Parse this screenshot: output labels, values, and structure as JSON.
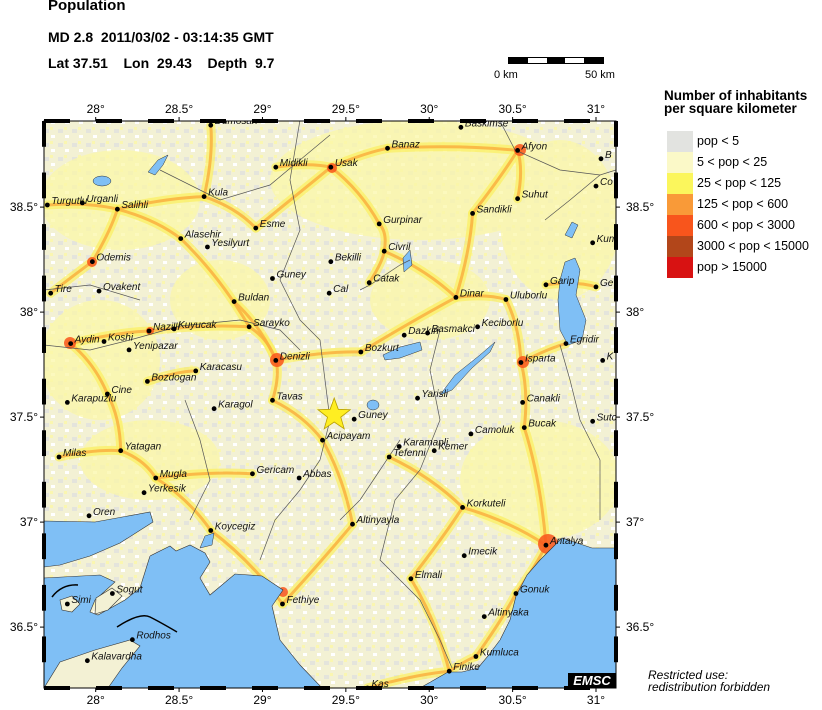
{
  "header": {
    "title": "Population",
    "event_line": "MD 2.8  2011/03/02 - 03:14:35 GMT",
    "location_line": "Lat 37.51    Lon  29.43    Depth  9.7"
  },
  "event": {
    "magnitude_type": "MD",
    "magnitude": 2.8,
    "lat": 37.51,
    "lon": 29.43,
    "depth": 9.7,
    "marker": "star-icon",
    "marker_color": "#ffee22"
  },
  "scale_bar": {
    "start_label": "0 km",
    "end_label": "50 km"
  },
  "map": {
    "lon_range": [
      27.69,
      31.12
    ],
    "lat_range": [
      36.21,
      38.91
    ],
    "lon_ticks": [
      28,
      28.5,
      29,
      29.5,
      30,
      30.5,
      31
    ],
    "lat_ticks": [
      36.5,
      37,
      37.5,
      38,
      38.5
    ],
    "lon_tick_labels": [
      "28°",
      "28.5°",
      "29°",
      "29.5°",
      "30°",
      "30.5°",
      "31°"
    ],
    "lat_tick_labels": [
      "36.5°",
      "37°",
      "37.5°",
      "38°",
      "38.5°"
    ],
    "sea_color": "#7fbff5",
    "cities": [
      {
        "name": "Dumosan",
        "lat": 38.89,
        "lon": 28.69
      },
      {
        "name": "Midikli",
        "lat": 38.69,
        "lon": 29.08
      },
      {
        "name": "Kula",
        "lat": 38.55,
        "lon": 28.65
      },
      {
        "name": "Turgutlu",
        "lat": 38.51,
        "lon": 27.71
      },
      {
        "name": "Urganli",
        "lat": 38.52,
        "lon": 27.92
      },
      {
        "name": "Salihli",
        "lat": 38.49,
        "lon": 28.13
      },
      {
        "name": "Esme",
        "lat": 38.4,
        "lon": 28.96
      },
      {
        "name": "Alasehir",
        "lat": 38.35,
        "lon": 28.51
      },
      {
        "name": "Yesilyurt",
        "lat": 38.31,
        "lon": 28.67
      },
      {
        "name": "Odemis",
        "lat": 38.24,
        "lon": 27.98
      },
      {
        "name": "Guney",
        "lat": 38.16,
        "lon": 29.06
      },
      {
        "name": "Tire",
        "lat": 38.09,
        "lon": 27.73
      },
      {
        "name": "Ovakent",
        "lat": 38.1,
        "lon": 28.02
      },
      {
        "name": "Buldan",
        "lat": 38.05,
        "lon": 28.83
      },
      {
        "name": "Sarayko",
        "lat": 37.93,
        "lon": 28.92
      },
      {
        "name": "Nazilli",
        "lat": 37.91,
        "lon": 28.32
      },
      {
        "name": "Kuyucak",
        "lat": 37.92,
        "lon": 28.47
      },
      {
        "name": "Koshi",
        "lat": 37.86,
        "lon": 28.05
      },
      {
        "name": "Aydin",
        "lat": 37.85,
        "lon": 27.85
      },
      {
        "name": "Yenipazar",
        "lat": 37.82,
        "lon": 28.2
      },
      {
        "name": "Denizli",
        "lat": 37.77,
        "lon": 29.08
      },
      {
        "name": "Karacasu",
        "lat": 37.72,
        "lon": 28.6
      },
      {
        "name": "Bozdogan",
        "lat": 37.67,
        "lon": 28.31
      },
      {
        "name": "Cine",
        "lat": 37.61,
        "lon": 28.07
      },
      {
        "name": "Karapuzlu",
        "lat": 37.57,
        "lon": 27.83
      },
      {
        "name": "Tavas",
        "lat": 37.58,
        "lon": 29.06
      },
      {
        "name": "Karagol",
        "lat": 37.54,
        "lon": 28.71
      },
      {
        "name": "Baskimse",
        "lat": 38.88,
        "lon": 30.19
      },
      {
        "name": "Banaz",
        "lat": 38.78,
        "lon": 29.75
      },
      {
        "name": "Afyon",
        "lat": 38.77,
        "lon": 30.53
      },
      {
        "name": "B",
        "lat": 38.73,
        "lon": 31.03
      },
      {
        "name": "Usak",
        "lat": 38.69,
        "lon": 29.41
      },
      {
        "name": "Co",
        "lat": 38.6,
        "lon": 31.0
      },
      {
        "name": "Suhut",
        "lat": 38.54,
        "lon": 30.53
      },
      {
        "name": "Sandikli",
        "lat": 38.47,
        "lon": 30.26
      },
      {
        "name": "Gurpinar",
        "lat": 38.42,
        "lon": 29.7
      },
      {
        "name": "Kum",
        "lat": 38.33,
        "lon": 30.98
      },
      {
        "name": "Civril",
        "lat": 38.29,
        "lon": 29.73
      },
      {
        "name": "Bekilli",
        "lat": 38.24,
        "lon": 29.41
      },
      {
        "name": "Catak",
        "lat": 38.14,
        "lon": 29.64
      },
      {
        "name": "Garip",
        "lat": 38.13,
        "lon": 30.7
      },
      {
        "name": "Ge",
        "lat": 38.12,
        "lon": 31.0
      },
      {
        "name": "Cal",
        "lat": 38.09,
        "lon": 29.4
      },
      {
        "name": "Dinar",
        "lat": 38.07,
        "lon": 30.16
      },
      {
        "name": "Uluborlu",
        "lat": 38.06,
        "lon": 30.46
      },
      {
        "name": "Dazkiri",
        "lat": 37.89,
        "lon": 29.85
      },
      {
        "name": "Basmakci",
        "lat": 37.9,
        "lon": 29.99
      },
      {
        "name": "Keciborlu",
        "lat": 37.93,
        "lon": 30.29
      },
      {
        "name": "Egridir",
        "lat": 37.85,
        "lon": 30.82
      },
      {
        "name": "Bozkurt",
        "lat": 37.81,
        "lon": 29.59
      },
      {
        "name": "Isparta",
        "lat": 37.76,
        "lon": 30.55
      },
      {
        "name": "K",
        "lat": 37.77,
        "lon": 31.04
      },
      {
        "name": "Yarisli",
        "lat": 37.59,
        "lon": 29.93
      },
      {
        "name": "Canakli",
        "lat": 37.57,
        "lon": 30.56
      },
      {
        "name": "Guney",
        "lat": 37.49,
        "lon": 29.55
      },
      {
        "name": "Acipayam",
        "lat": 37.39,
        "lon": 29.36
      },
      {
        "name": "Sutc",
        "lat": 37.48,
        "lon": 30.98
      },
      {
        "name": "Bucak",
        "lat": 37.45,
        "lon": 30.57
      },
      {
        "name": "Camoluk",
        "lat": 37.42,
        "lon": 30.25
      },
      {
        "name": "Karamanli",
        "lat": 37.36,
        "lon": 29.82
      },
      {
        "name": "Kemer",
        "lat": 37.34,
        "lon": 30.03
      },
      {
        "name": "Tefenni",
        "lat": 37.31,
        "lon": 29.76
      },
      {
        "name": "Korkuteli",
        "lat": 37.07,
        "lon": 30.2
      },
      {
        "name": "Altinyayla",
        "lat": 36.99,
        "lon": 29.54
      },
      {
        "name": "Antalya",
        "lat": 36.89,
        "lon": 30.7
      },
      {
        "name": "Imecik",
        "lat": 36.84,
        "lon": 30.21
      },
      {
        "name": "Elmali",
        "lat": 36.73,
        "lon": 29.89
      },
      {
        "name": "Gonuk",
        "lat": 36.66,
        "lon": 30.52
      },
      {
        "name": "Altinyaka",
        "lat": 36.55,
        "lon": 30.33
      },
      {
        "name": "Kumluca",
        "lat": 36.36,
        "lon": 30.28
      },
      {
        "name": "Finike",
        "lat": 36.29,
        "lon": 30.12
      },
      {
        "name": "Kas",
        "lat": 36.21,
        "lon": 29.63
      },
      {
        "name": "Milas",
        "lat": 37.31,
        "lon": 27.78
      },
      {
        "name": "Yatagan",
        "lat": 37.34,
        "lon": 28.15
      },
      {
        "name": "Gericam",
        "lat": 37.23,
        "lon": 28.94
      },
      {
        "name": "Abbas",
        "lat": 37.21,
        "lon": 29.22
      },
      {
        "name": "Mugla",
        "lat": 37.21,
        "lon": 28.36
      },
      {
        "name": "Yerkesik",
        "lat": 37.14,
        "lon": 28.29
      },
      {
        "name": "Oren",
        "lat": 37.03,
        "lon": 27.96
      },
      {
        "name": "Koycegiz",
        "lat": 36.96,
        "lon": 28.69
      },
      {
        "name": "Sogut",
        "lat": 36.66,
        "lon": 28.1
      },
      {
        "name": "Simi",
        "lat": 36.61,
        "lon": 27.83
      },
      {
        "name": "Fethiye",
        "lat": 36.61,
        "lon": 29.12
      },
      {
        "name": "Rodhos",
        "lat": 36.44,
        "lon": 28.22
      },
      {
        "name": "Kalavardha",
        "lat": 36.34,
        "lon": 27.95
      }
    ]
  },
  "legend": {
    "title_line1": "Number of inhabitants",
    "title_line2": "per square kilometer",
    "items": [
      {
        "label": "pop < 5",
        "color": "#e2e3e0"
      },
      {
        "label": "5 < pop < 25",
        "color": "#fbf9c8"
      },
      {
        "label": "25 < pop < 125",
        "color": "#fbf65c"
      },
      {
        "label": "125 < pop < 600",
        "color": "#f99a38"
      },
      {
        "label": "600 < pop < 3000",
        "color": "#f8551c"
      },
      {
        "label": "3000 < pop < 15000",
        "color": "#b2461a"
      },
      {
        "label": "pop > 15000",
        "color": "#d81212"
      }
    ]
  },
  "logo": "EMSC",
  "notice": {
    "line1": "Restricted use:",
    "line2": "redistribution forbidden"
  }
}
